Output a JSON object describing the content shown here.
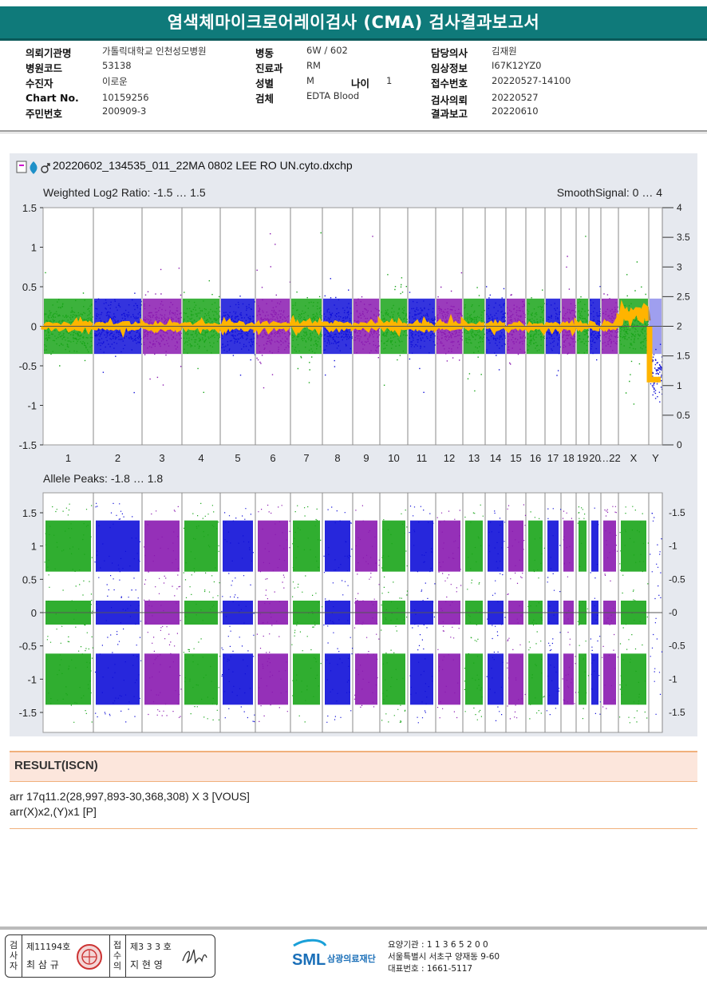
{
  "report": {
    "title": "염색체마이크로어레이검사 (CMA) 검사결과보고서"
  },
  "info": {
    "col1": [
      {
        "label": "의뢰기관명",
        "value": "가톨릭대학교 인천성모병원"
      },
      {
        "label": "병원코드",
        "value": "53138"
      },
      {
        "label": "수진자",
        "value": "이로운"
      },
      {
        "label": "Chart No.",
        "value": "10159256"
      },
      {
        "label": "주민번호",
        "value": "200909-3"
      }
    ],
    "col2": [
      {
        "label": "병동",
        "value": "6W / 602"
      },
      {
        "label": "진료과",
        "value": "RM"
      },
      {
        "label": "성별",
        "value": "M"
      },
      {
        "label": "검체",
        "value": "EDTA Blood"
      }
    ],
    "age": {
      "label": "나이",
      "value": "1"
    },
    "col3": [
      {
        "label": "담당의사",
        "value": "김재원"
      },
      {
        "label": "임상정보",
        "value": "I67K12YZ0"
      },
      {
        "label": "접수번호",
        "value": "20220527-14100"
      },
      {
        "label": "검사의뢰",
        "value": "20220527"
      },
      {
        "label": "결과보고",
        "value": "20220610"
      }
    ]
  },
  "plot": {
    "filename": "20220602_134535_011_22MA 0802 LEE RO UN.cyto.dxchp",
    "top_left_label": "Weighted Log2 Ratio: -1.5 … 1.5",
    "top_right_label": "SmoothSignal: 0 … 4",
    "bottom_left_label": "Allele Peaks: -1.8 … 1.8",
    "chromosomes": [
      "1",
      "2",
      "3",
      "4",
      "5",
      "6",
      "7",
      "8",
      "9",
      "10",
      "11",
      "12",
      "13",
      "14",
      "15",
      "16",
      "17",
      "18",
      "19",
      "20",
      "…22",
      "X",
      "Y"
    ],
    "top_left_ticks": [
      "1.5",
      "1",
      "0.5",
      "0",
      "-0.5",
      "-1",
      "-1.5"
    ],
    "top_right_ticks": [
      "4",
      "3.5",
      "3",
      "2.5",
      "2",
      "1.5",
      "1",
      "0.5",
      "0"
    ],
    "bottom_ticks": [
      "1.5",
      "1",
      "0.5",
      "0",
      "-0.5",
      "-1",
      "-1.5"
    ],
    "colors": {
      "green": "#1aa51a",
      "blue": "#1010d8",
      "purple": "#8a1ab0",
      "orange": "#ffb400"
    }
  },
  "result": {
    "heading": "RESULT(ISCN)",
    "line1": "arr 17q11.2(28,997,893-30,368,308) X 3 [VOUS]",
    "line2": "arr(X)x2,(Y)x1 [P]"
  },
  "footer": {
    "examiner_label": "검사자",
    "examiner_no": "제11194호",
    "examiner_name": "최 삼 규",
    "confirm_label": "접수의",
    "confirm_no": "제3 3 3 호",
    "confirm_name": "지 현 영",
    "org_logo": "SML",
    "org_name": "삼광의료재단",
    "org_line1": "요양기관 : 1 1 3 6 5 2 0 0",
    "org_line2": "서울특별시 서초구 양재동 9-60",
    "org_line3": "대표번호 : 1661-5117"
  }
}
